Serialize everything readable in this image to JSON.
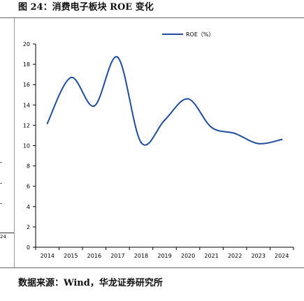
{
  "figure": {
    "title": "图 24：消费电子板块 ROE 变化",
    "source": "数据来源：Wind，华龙证券研究所",
    "crop_fragment_label": "24"
  },
  "chart_data": {
    "type": "line",
    "title": "",
    "xlabel": "",
    "ylabel": "",
    "x": [
      "2014",
      "2015",
      "2016",
      "2017",
      "2018",
      "2019",
      "2020",
      "2021",
      "2022",
      "2023",
      "2024"
    ],
    "series": [
      {
        "name": "ROE（%）",
        "color": "#1f4e9e",
        "smooth": true,
        "values": [
          12.2,
          16.7,
          13.9,
          18.7,
          10.3,
          12.5,
          14.6,
          11.8,
          11.2,
          10.2,
          10.6
        ]
      }
    ],
    "ylim": [
      0,
      20
    ],
    "yticks": [
      0,
      2,
      4,
      6,
      8,
      10,
      12,
      14,
      16,
      18,
      20
    ],
    "grid": false,
    "legend_position": "top-right"
  }
}
